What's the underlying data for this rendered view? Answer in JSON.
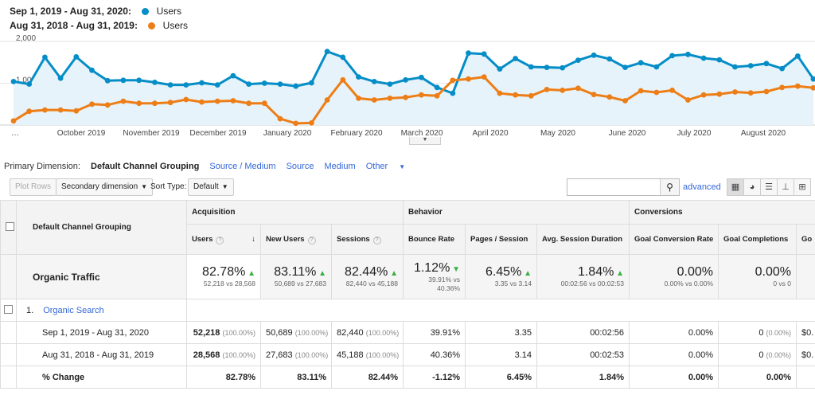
{
  "legend": [
    {
      "range": "Sep 1, 2019 - Aug 31, 2020:",
      "label": "Users",
      "color": "#058dc7"
    },
    {
      "range": "Aug 31, 2018 - Aug 31, 2019:",
      "label": "Users",
      "color": "#ed7e17"
    }
  ],
  "chart_data": {
    "type": "line",
    "y_ticks": [
      "2,000",
      "1,000"
    ],
    "ylim": [
      0,
      2000
    ],
    "x_labels": [
      "October 2019",
      "November 2019",
      "December 2019",
      "January 2020",
      "February 2020",
      "March 2020",
      "April 2020",
      "May 2020",
      "June 2020",
      "July 2020",
      "August 2020"
    ],
    "x_label_start": "…",
    "grid": true,
    "series": [
      {
        "name": "Users",
        "color": "#058dc7",
        "values": [
          1040,
          980,
          1620,
          1120,
          1630,
          1310,
          1060,
          1070,
          1070,
          1020,
          960,
          960,
          1010,
          960,
          1180,
          980,
          1000,
          980,
          930,
          1010,
          1760,
          1620,
          1150,
          1040,
          980,
          1080,
          1140,
          900,
          760,
          1720,
          1700,
          1340,
          1590,
          1390,
          1380,
          1370,
          1550,
          1670,
          1580,
          1380,
          1490,
          1390,
          1660,
          1690,
          1600,
          1560,
          1390,
          1420,
          1470,
          1350,
          1650,
          1100
        ]
      },
      {
        "name": "Users",
        "color": "#ed7e17",
        "values": [
          100,
          330,
          360,
          360,
          340,
          500,
          480,
          570,
          520,
          520,
          540,
          610,
          550,
          570,
          580,
          520,
          520,
          150,
          40,
          50,
          600,
          1080,
          640,
          600,
          640,
          660,
          720,
          700,
          1070,
          1100,
          1150,
          760,
          720,
          700,
          850,
          830,
          880,
          730,
          670,
          580,
          820,
          780,
          830,
          600,
          720,
          740,
          790,
          770,
          800,
          900,
          930,
          890
        ]
      }
    ]
  },
  "dimensions": {
    "prefix": "Primary Dimension:",
    "active": "Default Channel Grouping",
    "links": [
      "Source / Medium",
      "Source",
      "Medium",
      "Other"
    ]
  },
  "toolbar": {
    "plot_rows": "Plot Rows",
    "secondary": "Secondary dimension",
    "sort_label": "Sort Type:",
    "sort_value": "Default",
    "search_value": "",
    "advanced": "advanced"
  },
  "table": {
    "col_dim": "Default Channel Grouping",
    "groups": {
      "acq": "Acquisition",
      "beh": "Behavior",
      "conv": "Conversions"
    },
    "headers": [
      "Users",
      "New Users",
      "Sessions",
      "Bounce Rate",
      "Pages / Session",
      "Avg. Session Duration",
      "Goal Conversion Rate",
      "Goal Completions",
      "Go"
    ],
    "summary": {
      "label": "Organic Traffic",
      "cells": [
        {
          "big": "82.78%",
          "sub": "52,218 vs 28,568"
        },
        {
          "big": "83.11%",
          "sub": "50,689 vs 27,683"
        },
        {
          "big": "82.44%",
          "sub": "82,440 vs 45,188"
        },
        {
          "big": "1.12%",
          "sub": "39.91% vs 40.36%"
        },
        {
          "big": "6.45%",
          "sub": "3.35 vs 3.14"
        },
        {
          "big": "1.84%",
          "sub": "00:02:56 vs 00:02:53"
        },
        {
          "big": "0.00%",
          "sub": "0.00% vs 0.00%"
        },
        {
          "big": "0.00%",
          "sub": "0 vs 0"
        }
      ]
    },
    "channel": {
      "index": "1.",
      "name": "Organic Search"
    },
    "rows": [
      {
        "label": "Sep 1, 2019 - Aug 31, 2020",
        "cells": [
          [
            "52,218",
            "(100.00%)"
          ],
          [
            "50,689",
            "(100.00%)"
          ],
          [
            "82,440",
            "(100.00%)"
          ],
          [
            "39.91%",
            ""
          ],
          [
            "3.35",
            ""
          ],
          [
            "00:02:56",
            ""
          ],
          [
            "0.00%",
            ""
          ],
          [
            "0",
            "(0.00%)"
          ],
          [
            "$0.",
            ""
          ]
        ]
      },
      {
        "label": "Aug 31, 2018 - Aug 31, 2019",
        "cells": [
          [
            "28,568",
            "(100.00%)"
          ],
          [
            "27,683",
            "(100.00%)"
          ],
          [
            "45,188",
            "(100.00%)"
          ],
          [
            "40.36%",
            ""
          ],
          [
            "3.14",
            ""
          ],
          [
            "00:02:53",
            ""
          ],
          [
            "0.00%",
            ""
          ],
          [
            "0",
            "(0.00%)"
          ],
          [
            "$0.",
            ""
          ]
        ]
      }
    ],
    "change": {
      "label": "% Change",
      "cells": [
        "82.78%",
        "83.11%",
        "82.44%",
        "-1.12%",
        "6.45%",
        "1.84%",
        "0.00%",
        "0.00%",
        ""
      ]
    }
  }
}
